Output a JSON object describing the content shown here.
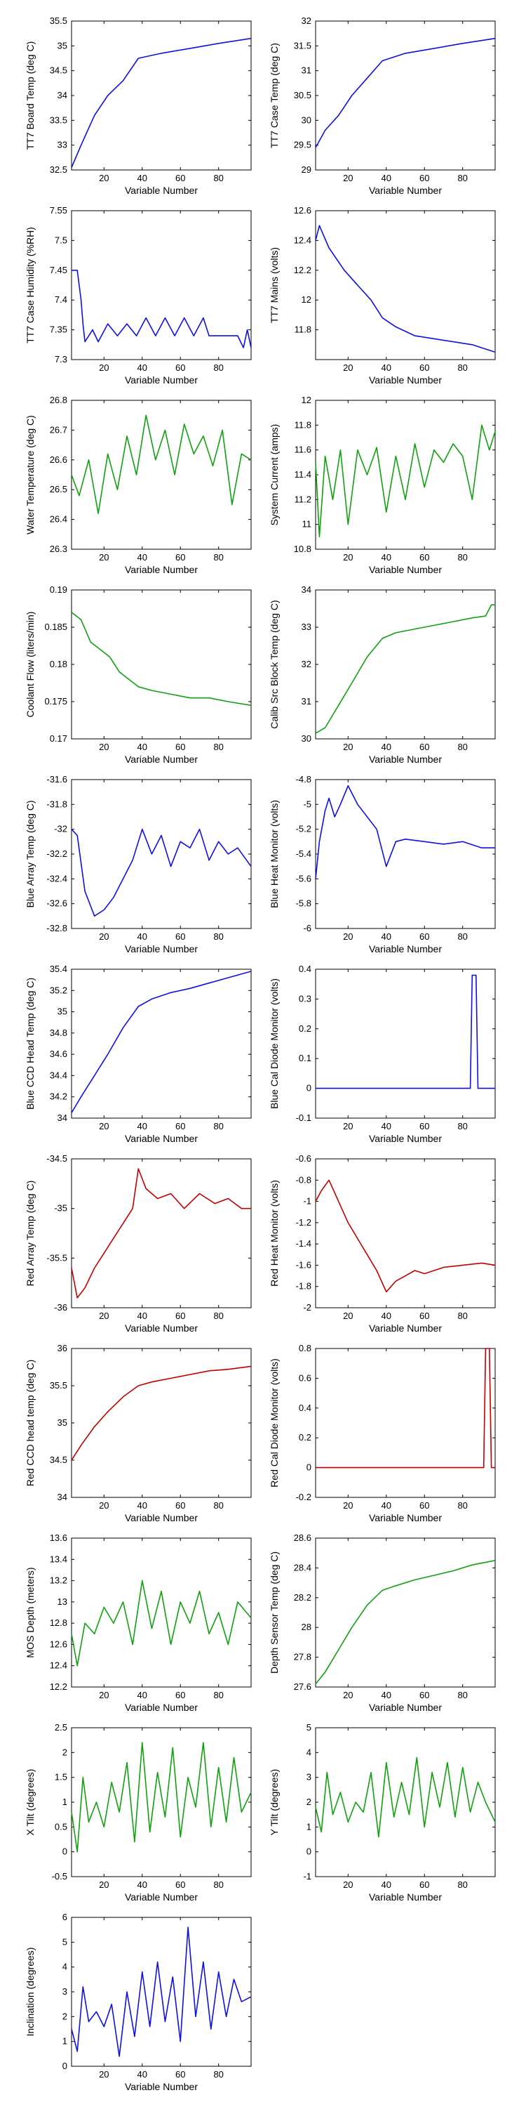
{
  "figure": {
    "colors": {
      "blue": "#1010e0",
      "green": "#10a010",
      "red": "#c00000",
      "axis": "#000000"
    },
    "x_ticks": [
      20,
      40,
      60,
      80
    ],
    "xlabel": "Variable Number"
  },
  "chart_data": [
    {
      "type": "line",
      "ylabel": "TT7 Board Temp (deg C)",
      "xlabel": "Variable Number",
      "color": "#1010e0",
      "xlim": [
        3,
        97
      ],
      "ylim": [
        32.5,
        35.5
      ],
      "yticks": [
        32.5,
        33,
        33.5,
        34,
        34.5,
        35,
        35.5
      ],
      "yticklabels": [
        "32.5",
        "33",
        "33.5",
        "34",
        "34.5",
        "35",
        "35.5"
      ],
      "x": [
        3,
        8,
        15,
        22,
        30,
        38,
        50,
        65,
        80,
        97
      ],
      "y": [
        32.55,
        33.0,
        33.6,
        34.0,
        34.3,
        34.75,
        34.85,
        34.95,
        35.05,
        35.15
      ]
    },
    {
      "type": "line",
      "ylabel": "TT7 Case Temp (deg C)",
      "xlabel": "Variable Number",
      "color": "#1010e0",
      "xlim": [
        3,
        97
      ],
      "ylim": [
        29,
        32
      ],
      "yticks": [
        29,
        29.5,
        30,
        30.5,
        31,
        31.5,
        32
      ],
      "yticklabels": [
        "29",
        "29.5",
        "30",
        "30.5",
        "31",
        "31.5",
        "32"
      ],
      "x": [
        3,
        8,
        15,
        22,
        30,
        38,
        50,
        65,
        80,
        97
      ],
      "y": [
        29.45,
        29.8,
        30.1,
        30.5,
        30.85,
        31.2,
        31.35,
        31.45,
        31.55,
        31.65
      ]
    },
    {
      "type": "line",
      "ylabel": "TT7 Case Humidity (%RH)",
      "xlabel": "Variable Number",
      "color": "#1010e0",
      "xlim": [
        3,
        97
      ],
      "ylim": [
        7.3,
        7.55
      ],
      "yticks": [
        7.3,
        7.35,
        7.4,
        7.45,
        7.5,
        7.55
      ],
      "yticklabels": [
        "7.3",
        "7.35",
        "7.4",
        "7.45",
        "7.5",
        "7.55"
      ],
      "x": [
        3,
        6,
        8,
        9,
        10,
        14,
        17,
        22,
        27,
        32,
        37,
        42,
        47,
        52,
        57,
        62,
        67,
        72,
        75,
        90,
        93,
        95,
        97
      ],
      "y": [
        7.45,
        7.45,
        7.4,
        7.36,
        7.33,
        7.35,
        7.33,
        7.36,
        7.34,
        7.36,
        7.34,
        7.37,
        7.34,
        7.37,
        7.34,
        7.37,
        7.34,
        7.37,
        7.34,
        7.34,
        7.32,
        7.35,
        7.32
      ]
    },
    {
      "type": "line",
      "ylabel": "TT7 Mains  (volts)",
      "xlabel": "Variable Number",
      "color": "#1010e0",
      "xlim": [
        3,
        97
      ],
      "ylim": [
        11.6,
        12.6
      ],
      "yticks": [
        11.8,
        12,
        12.2,
        12.4,
        12.6
      ],
      "yticklabels": [
        "11.8",
        "12",
        "12.2",
        "12.4",
        "12.6"
      ],
      "x": [
        3,
        5,
        10,
        18,
        25,
        32,
        38,
        45,
        55,
        65,
        75,
        85,
        97
      ],
      "y": [
        12.4,
        12.5,
        12.35,
        12.2,
        12.1,
        12.0,
        11.88,
        11.82,
        11.76,
        11.74,
        11.72,
        11.7,
        11.65
      ]
    },
    {
      "type": "line",
      "ylabel": "Water Temperature (deg C)",
      "xlabel": "Variable Number",
      "color": "#10a010",
      "xlim": [
        3,
        97
      ],
      "ylim": [
        26.3,
        26.8
      ],
      "yticks": [
        26.3,
        26.4,
        26.5,
        26.6,
        26.7,
        26.8
      ],
      "yticklabels": [
        "26.3",
        "26.4",
        "26.5",
        "26.6",
        "26.7",
        "26.8"
      ],
      "x": [
        3,
        7,
        12,
        17,
        22,
        27,
        32,
        37,
        42,
        47,
        52,
        57,
        62,
        67,
        72,
        77,
        82,
        87,
        92,
        97
      ],
      "y": [
        26.55,
        26.48,
        26.6,
        26.42,
        26.62,
        26.5,
        26.68,
        26.55,
        26.75,
        26.6,
        26.7,
        26.55,
        26.72,
        26.62,
        26.68,
        26.58,
        26.7,
        26.45,
        26.62,
        26.6
      ]
    },
    {
      "type": "line",
      "ylabel": "System Current (amps)",
      "xlabel": "Variable Number",
      "color": "#10a010",
      "xlim": [
        3,
        97
      ],
      "ylim": [
        10.8,
        12
      ],
      "yticks": [
        10.8,
        11,
        11.2,
        11.4,
        11.6,
        11.8,
        12
      ],
      "yticklabels": [
        "10.8",
        "11",
        "11.2",
        "11.4",
        "11.6",
        "11.8",
        "12"
      ],
      "x": [
        3,
        5,
        8,
        12,
        16,
        20,
        25,
        30,
        35,
        40,
        45,
        50,
        55,
        60,
        65,
        70,
        75,
        80,
        85,
        90,
        94,
        97
      ],
      "y": [
        11.5,
        10.9,
        11.55,
        11.2,
        11.6,
        11.0,
        11.6,
        11.4,
        11.62,
        11.1,
        11.55,
        11.2,
        11.65,
        11.3,
        11.6,
        11.5,
        11.65,
        11.55,
        11.2,
        11.8,
        11.6,
        11.75
      ]
    },
    {
      "type": "line",
      "ylabel": "Coolant Flow (liters/min)",
      "xlabel": "Variable Number",
      "color": "#10a010",
      "xlim": [
        3,
        97
      ],
      "ylim": [
        0.17,
        0.19
      ],
      "yticks": [
        0.17,
        0.175,
        0.18,
        0.185,
        0.19
      ],
      "yticklabels": [
        "0.17",
        "0.175",
        "0.18",
        "0.185",
        "0.19"
      ],
      "x": [
        3,
        8,
        13,
        18,
        23,
        28,
        33,
        38,
        45,
        55,
        65,
        75,
        85,
        97
      ],
      "y": [
        0.187,
        0.186,
        0.183,
        0.182,
        0.181,
        0.179,
        0.178,
        0.177,
        0.1765,
        0.176,
        0.1755,
        0.1755,
        0.175,
        0.1745
      ]
    },
    {
      "type": "line",
      "ylabel": "Calib Src Block Temp (deg C)",
      "xlabel": "Variable Number",
      "color": "#10a010",
      "xlim": [
        3,
        97
      ],
      "ylim": [
        30,
        34
      ],
      "yticks": [
        30,
        31,
        32,
        33,
        34
      ],
      "yticklabels": [
        "30",
        "31",
        "32",
        "33",
        "34"
      ],
      "x": [
        3,
        8,
        15,
        22,
        30,
        38,
        45,
        55,
        65,
        75,
        85,
        92,
        95,
        97
      ],
      "y": [
        30.15,
        30.3,
        30.9,
        31.5,
        32.2,
        32.7,
        32.85,
        32.95,
        33.05,
        33.15,
        33.25,
        33.3,
        33.6,
        33.6
      ]
    },
    {
      "type": "line",
      "ylabel": "Blue Array Temp (deg C)",
      "xlabel": "Variable Number",
      "color": "#1010e0",
      "xlim": [
        3,
        97
      ],
      "ylim": [
        -32.8,
        -31.6
      ],
      "yticks": [
        -32.8,
        -32.6,
        -32.4,
        -32.2,
        -32,
        -31.8,
        -31.6
      ],
      "yticklabels": [
        "-32.8",
        "-32.6",
        "-32.4",
        "-32.2",
        "-32",
        "-31.8",
        "-31.6"
      ],
      "x": [
        3,
        6,
        10,
        15,
        20,
        25,
        30,
        35,
        40,
        45,
        50,
        55,
        60,
        65,
        70,
        75,
        80,
        85,
        90,
        97
      ],
      "y": [
        -32.0,
        -32.05,
        -32.5,
        -32.7,
        -32.65,
        -32.55,
        -32.4,
        -32.25,
        -32.0,
        -32.2,
        -32.05,
        -32.3,
        -32.1,
        -32.15,
        -32.0,
        -32.25,
        -32.1,
        -32.2,
        -32.15,
        -32.3
      ]
    },
    {
      "type": "line",
      "ylabel": "Blue Heat Monitor (volts)",
      "xlabel": "Variable Number",
      "color": "#1010e0",
      "xlim": [
        3,
        97
      ],
      "ylim": [
        -6,
        -4.8
      ],
      "yticks": [
        -6,
        -5.8,
        -5.6,
        -5.4,
        -5.2,
        -5,
        -4.8
      ],
      "yticklabels": [
        "-6",
        "-5.8",
        "-5.6",
        "-5.4",
        "-5.2",
        "-5",
        "-4.8"
      ],
      "x": [
        3,
        5,
        8,
        10,
        13,
        16,
        20,
        25,
        30,
        35,
        40,
        45,
        50,
        60,
        70,
        80,
        90,
        97
      ],
      "y": [
        -5.6,
        -5.3,
        -5.05,
        -4.95,
        -5.1,
        -5.0,
        -4.85,
        -5.0,
        -5.1,
        -5.2,
        -5.5,
        -5.3,
        -5.28,
        -5.3,
        -5.32,
        -5.3,
        -5.35,
        -5.35
      ]
    },
    {
      "type": "line",
      "ylabel": "Blue CCD Head Temp (deg C)",
      "xlabel": "Variable Number",
      "color": "#1010e0",
      "xlim": [
        3,
        97
      ],
      "ylim": [
        34,
        35.4
      ],
      "yticks": [
        34,
        34.2,
        34.4,
        34.6,
        34.8,
        35,
        35.2,
        35.4
      ],
      "yticklabels": [
        "34",
        "34.2",
        "34.4",
        "34.6",
        "34.8",
        "35",
        "35.2",
        "35.4"
      ],
      "x": [
        3,
        8,
        15,
        22,
        30,
        38,
        45,
        55,
        65,
        75,
        85,
        97
      ],
      "y": [
        34.05,
        34.2,
        34.4,
        34.6,
        34.85,
        35.05,
        35.12,
        35.18,
        35.22,
        35.27,
        35.32,
        35.38
      ]
    },
    {
      "type": "line",
      "ylabel": "Blue Cal Diode Monitor (volts)",
      "xlabel": "Variable Number",
      "color": "#1010e0",
      "xlim": [
        3,
        97
      ],
      "ylim": [
        -0.1,
        0.4
      ],
      "yticks": [
        -0.1,
        0,
        0.1,
        0.2,
        0.3,
        0.4
      ],
      "yticklabels": [
        "-0.1",
        "0",
        "0.1",
        "0.2",
        "0.3",
        "0.4"
      ],
      "x": [
        3,
        84,
        85,
        87,
        88,
        97
      ],
      "y": [
        0.0,
        0.0,
        0.38,
        0.38,
        0.0,
        0.0
      ]
    },
    {
      "type": "line",
      "ylabel": "Red Array Temp (deg C)",
      "xlabel": "Variable Number",
      "color": "#c00000",
      "xlim": [
        3,
        97
      ],
      "ylim": [
        -36,
        -34.5
      ],
      "yticks": [
        -36,
        -35.5,
        -35,
        -34.5
      ],
      "yticklabels": [
        "-36",
        "-35.5",
        "-35",
        "-34.5"
      ],
      "x": [
        3,
        6,
        10,
        15,
        20,
        25,
        30,
        35,
        38,
        42,
        48,
        55,
        62,
        70,
        78,
        85,
        92,
        97
      ],
      "y": [
        -35.6,
        -35.9,
        -35.8,
        -35.6,
        -35.45,
        -35.3,
        -35.15,
        -35.0,
        -34.6,
        -34.8,
        -34.9,
        -34.85,
        -35.0,
        -34.85,
        -34.95,
        -34.9,
        -35.0,
        -35.0
      ]
    },
    {
      "type": "line",
      "ylabel": "Red Heat Monitor (volts)",
      "xlabel": "Variable Number",
      "color": "#c00000",
      "xlim": [
        3,
        97
      ],
      "ylim": [
        -2,
        -0.6
      ],
      "yticks": [
        -2,
        -1.8,
        -1.6,
        -1.4,
        -1.2,
        -1,
        -0.8,
        -0.6
      ],
      "yticklabels": [
        "-2",
        "-1.8",
        "-1.6",
        "-1.4",
        "-1.2",
        "-1",
        "-0.8",
        "-0.6"
      ],
      "x": [
        3,
        6,
        10,
        15,
        20,
        25,
        30,
        35,
        40,
        45,
        50,
        55,
        60,
        70,
        80,
        90,
        97
      ],
      "y": [
        -1.0,
        -0.9,
        -0.8,
        -1.0,
        -1.2,
        -1.35,
        -1.5,
        -1.65,
        -1.85,
        -1.75,
        -1.7,
        -1.65,
        -1.68,
        -1.62,
        -1.6,
        -1.58,
        -1.6
      ]
    },
    {
      "type": "line",
      "ylabel": "Red CCD head temp (deg C)",
      "xlabel": "Variable Number",
      "color": "#c00000",
      "xlim": [
        3,
        97
      ],
      "ylim": [
        34,
        36
      ],
      "yticks": [
        34,
        34.5,
        35,
        35.5,
        36
      ],
      "yticklabels": [
        "34",
        "34.5",
        "35",
        "35.5",
        "36"
      ],
      "x": [
        3,
        8,
        15,
        22,
        30,
        38,
        45,
        55,
        65,
        75,
        85,
        97
      ],
      "y": [
        34.5,
        34.7,
        34.95,
        35.15,
        35.35,
        35.5,
        35.55,
        35.6,
        35.65,
        35.7,
        35.72,
        35.76
      ]
    },
    {
      "type": "line",
      "ylabel": "Red Cal Diode Monitor (volts)",
      "xlabel": "Variable Number",
      "color": "#c00000",
      "xlim": [
        3,
        97
      ],
      "ylim": [
        -0.2,
        0.8
      ],
      "yticks": [
        -0.2,
        0,
        0.2,
        0.4,
        0.6,
        0.8
      ],
      "yticklabels": [
        "-0.2",
        "0",
        "0.2",
        "0.4",
        "0.6",
        "0.8"
      ],
      "x": [
        3,
        91,
        92,
        94,
        95,
        97
      ],
      "y": [
        0.0,
        0.0,
        0.8,
        0.8,
        0.0,
        0.0
      ]
    },
    {
      "type": "line",
      "ylabel": "MOS Depth  (meters)",
      "xlabel": "Variable Number",
      "color": "#10a010",
      "xlim": [
        3,
        97
      ],
      "ylim": [
        12.2,
        13.6
      ],
      "yticks": [
        12.2,
        12.4,
        12.6,
        12.8,
        13,
        13.2,
        13.4,
        13.6
      ],
      "yticklabels": [
        "12.2",
        "12.4",
        "12.6",
        "12.8",
        "13",
        "13.2",
        "13.4",
        "13.6"
      ],
      "x": [
        3,
        6,
        10,
        15,
        20,
        25,
        30,
        35,
        40,
        45,
        50,
        55,
        60,
        65,
        70,
        75,
        80,
        85,
        90,
        97
      ],
      "y": [
        12.7,
        12.4,
        12.8,
        12.7,
        12.95,
        12.8,
        13.0,
        12.6,
        13.2,
        12.75,
        13.1,
        12.6,
        13.0,
        12.8,
        13.1,
        12.7,
        12.9,
        12.6,
        13.0,
        12.85
      ]
    },
    {
      "type": "line",
      "ylabel": "Depth Sensor Temp (deg C)",
      "xlabel": "Variable Number",
      "color": "#10a010",
      "xlim": [
        3,
        97
      ],
      "ylim": [
        27.6,
        28.6
      ],
      "yticks": [
        27.6,
        27.8,
        28,
        28.2,
        28.4,
        28.6
      ],
      "yticklabels": [
        "27.6",
        "27.8",
        "28",
        "28.2",
        "28.4",
        "28.6"
      ],
      "x": [
        3,
        8,
        15,
        22,
        30,
        38,
        45,
        55,
        65,
        75,
        85,
        97
      ],
      "y": [
        27.62,
        27.7,
        27.85,
        28.0,
        28.15,
        28.25,
        28.28,
        28.32,
        28.35,
        28.38,
        28.42,
        28.45
      ]
    },
    {
      "type": "line",
      "ylabel": "X Tilt  (degrees)",
      "xlabel": "Variable Number",
      "color": "#10a010",
      "xlim": [
        3,
        97
      ],
      "ylim": [
        -0.5,
        2.5
      ],
      "yticks": [
        -0.5,
        0,
        0.5,
        1,
        1.5,
        2,
        2.5
      ],
      "yticklabels": [
        "-0.5",
        "0",
        "0.5",
        "1",
        "1.5",
        "2",
        "2.5"
      ],
      "x": [
        3,
        6,
        9,
        12,
        16,
        20,
        24,
        28,
        32,
        36,
        40,
        44,
        48,
        52,
        56,
        60,
        64,
        68,
        72,
        76,
        80,
        84,
        88,
        92,
        97
      ],
      "y": [
        0.8,
        0.0,
        1.5,
        0.6,
        1.0,
        0.5,
        1.4,
        0.8,
        1.8,
        0.2,
        2.2,
        0.4,
        1.6,
        0.7,
        2.1,
        0.3,
        1.5,
        0.9,
        2.2,
        0.5,
        1.7,
        0.6,
        1.9,
        0.8,
        1.2
      ]
    },
    {
      "type": "line",
      "ylabel": "Y Tilt  (degrees)",
      "xlabel": "Variable Number",
      "color": "#10a010",
      "xlim": [
        3,
        97
      ],
      "ylim": [
        -1,
        5
      ],
      "yticks": [
        -1,
        0,
        1,
        2,
        3,
        4,
        5
      ],
      "yticklabels": [
        "-1",
        "0",
        "1",
        "2",
        "3",
        "4",
        "5"
      ],
      "x": [
        3,
        6,
        9,
        12,
        16,
        20,
        24,
        28,
        32,
        36,
        40,
        44,
        48,
        52,
        56,
        60,
        64,
        68,
        72,
        76,
        80,
        84,
        88,
        92,
        97
      ],
      "y": [
        1.8,
        0.8,
        3.2,
        1.5,
        2.4,
        1.2,
        2.0,
        1.6,
        3.2,
        0.6,
        3.6,
        1.4,
        2.8,
        1.5,
        3.8,
        1.0,
        3.2,
        1.8,
        3.6,
        1.4,
        3.4,
        1.6,
        2.8,
        2.0,
        1.2
      ]
    },
    {
      "type": "line",
      "ylabel": "Inclination  (degrees)",
      "xlabel": "Variable Number",
      "color": "#1010e0",
      "xlim": [
        3,
        97
      ],
      "ylim": [
        0,
        6
      ],
      "yticks": [
        0,
        1,
        2,
        3,
        4,
        5,
        6
      ],
      "yticklabels": [
        "0",
        "1",
        "2",
        "3",
        "4",
        "5",
        "6"
      ],
      "x": [
        3,
        6,
        9,
        12,
        16,
        20,
        24,
        28,
        32,
        36,
        40,
        44,
        48,
        52,
        56,
        60,
        64,
        68,
        72,
        76,
        80,
        84,
        88,
        92,
        97
      ],
      "y": [
        1.5,
        0.6,
        3.2,
        1.8,
        2.2,
        1.6,
        2.5,
        0.4,
        3.0,
        1.2,
        3.8,
        1.6,
        4.2,
        1.8,
        3.6,
        1.0,
        5.6,
        2.0,
        4.2,
        1.5,
        3.8,
        2.0,
        3.5,
        2.6,
        2.8
      ]
    }
  ]
}
